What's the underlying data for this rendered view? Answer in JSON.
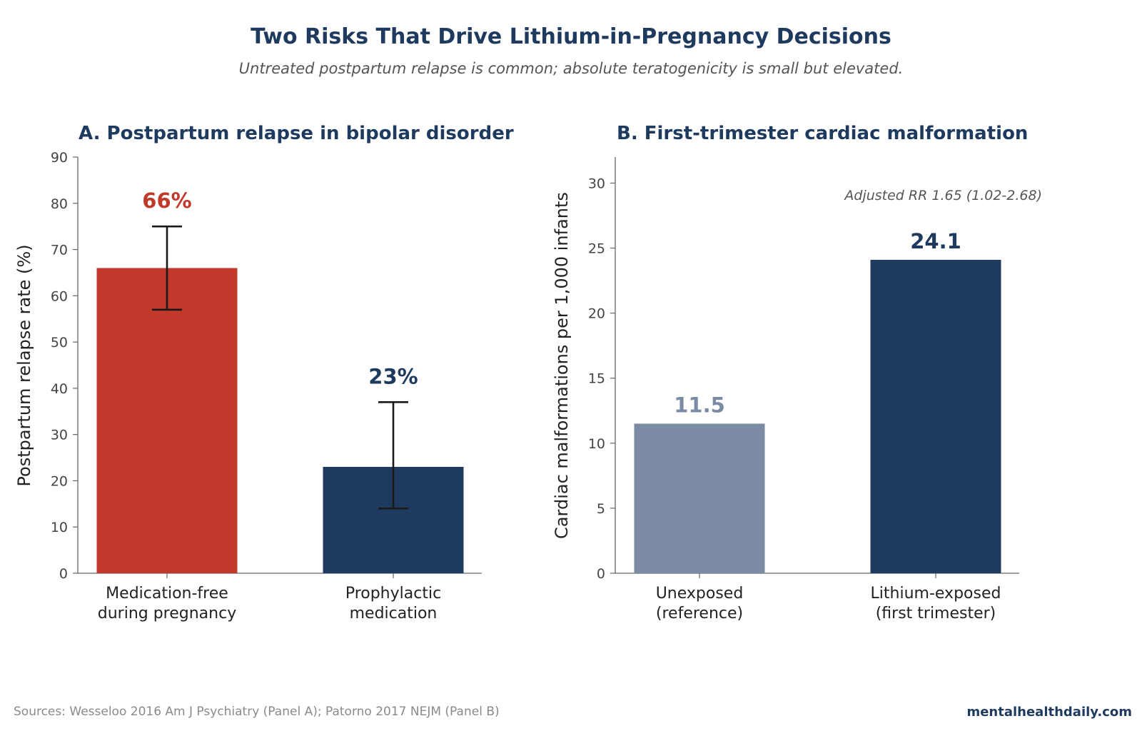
{
  "header": {
    "title": "Two Risks That Drive Lithium-in-Pregnancy Decisions",
    "subtitle": "Untreated postpartum relapse is common; absolute teratogenicity is small but elevated."
  },
  "footer": {
    "sources": "Sources: Wesseloo 2016 Am J Psychiatry (Panel A); Patorno 2017 NEJM (Panel B)",
    "brand": "mentalhealthdaily.com"
  },
  "chart_data": [
    {
      "type": "bar",
      "title": "A. Postpartum relapse in bipolar disorder",
      "ylabel": "Postpartum relapse rate (%)",
      "xlabel": "",
      "categories": [
        [
          "Medication-free",
          "during pregnancy"
        ],
        [
          "Prophylactic",
          "medication"
        ]
      ],
      "values": [
        66,
        23
      ],
      "error_bars": [
        [
          57,
          75
        ],
        [
          14,
          37
        ]
      ],
      "value_labels": [
        "66%",
        "23%"
      ],
      "colors": [
        "#c0392b",
        "#1f3a5f"
      ],
      "label_colors": [
        "#c0392b",
        "#1f3a5f"
      ],
      "ylim": [
        0,
        90
      ],
      "yticks": [
        0,
        10,
        20,
        30,
        40,
        50,
        60,
        70,
        80,
        90
      ],
      "grid": false
    },
    {
      "type": "bar",
      "title": "B. First-trimester cardiac malformation",
      "ylabel": "Cardiac malformations per 1,000 infants",
      "xlabel": "",
      "categories": [
        [
          "Unexposed",
          "(reference)"
        ],
        [
          "Lithium-exposed",
          "(first trimester)"
        ]
      ],
      "values": [
        11.5,
        24.1
      ],
      "value_labels": [
        "11.5",
        "24.1"
      ],
      "colors": [
        "#7a8ba3",
        "#1f3a5f"
      ],
      "label_colors": [
        "#7a8ba3",
        "#1f3a5f"
      ],
      "ylim": [
        0,
        32
      ],
      "yticks": [
        0,
        5,
        10,
        15,
        20,
        25,
        30
      ],
      "annotation": "Adjusted RR 1.65 (1.02-2.68)",
      "grid": false
    }
  ]
}
